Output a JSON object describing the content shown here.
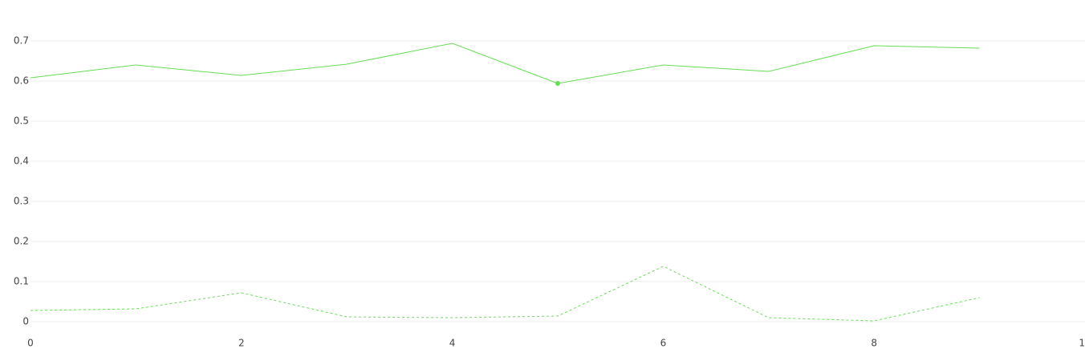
{
  "chart_data": {
    "type": "line",
    "x": [
      0,
      1,
      2,
      3,
      4,
      5,
      6,
      7,
      8,
      9
    ],
    "series": [
      {
        "color": "#66dd55",
        "dash": "solid",
        "values": [
          0.608,
          0.64,
          0.614,
          0.642,
          0.694,
          0.594,
          0.64,
          0.624,
          0.688,
          0.682
        ],
        "marker_index": 5
      },
      {
        "color": "#66dd55",
        "dash": "dash",
        "values": [
          0.028,
          0.032,
          0.072,
          0.012,
          0.01,
          0.014,
          0.138,
          0.01,
          0.002,
          0.06
        ]
      }
    ],
    "xlim": [
      0,
      10
    ],
    "xticks": [
      0,
      2,
      4,
      6,
      8,
      {
        "value": 10,
        "label": "1"
      }
    ],
    "ylim": [
      -0.02,
      0.78
    ],
    "yticks": [
      0,
      0.1,
      0.2,
      0.3,
      0.4,
      0.5,
      0.6,
      0.7
    ],
    "grid": true
  }
}
